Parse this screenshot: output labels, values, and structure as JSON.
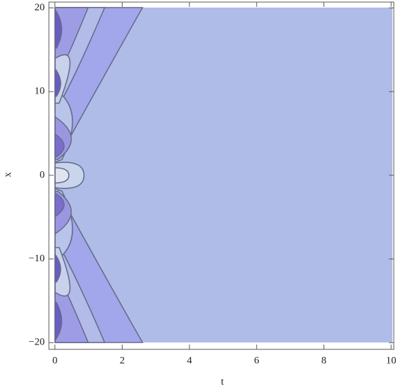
{
  "chart_data": {
    "type": "contour",
    "x_label": "t",
    "y_label": "x",
    "xlim": [
      -0.18,
      10.08
    ],
    "ylim": [
      -20.8,
      20.7
    ],
    "xticks": [
      0,
      2,
      4,
      6,
      8,
      10
    ],
    "yticks": [
      {
        "value": -20,
        "label": "−20"
      },
      {
        "value": -10,
        "label": "−10"
      },
      0,
      10,
      20
    ]
  }
}
